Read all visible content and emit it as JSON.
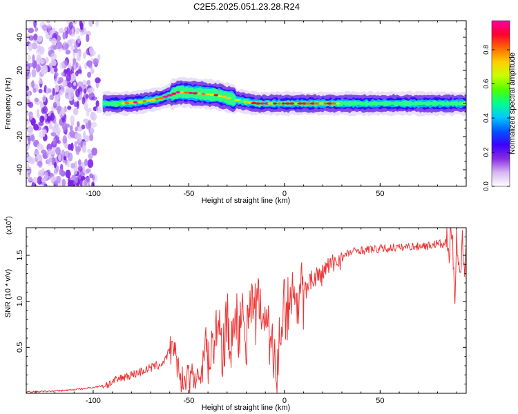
{
  "figure": {
    "title": "C2E5.2025.051.23.28.R24"
  },
  "chart_data": [
    {
      "type": "heatmap",
      "name": "spectrogram",
      "xlabel": "Height of straight line (km)",
      "ylabel": "Frequency (Hz)",
      "xlim": [
        -135,
        95
      ],
      "ylim": [
        -50,
        50
      ],
      "xticks": [
        -100,
        -50,
        0,
        50
      ],
      "xtick_labels": [
        "-100",
        "-50",
        "0",
        "50"
      ],
      "yticks": [
        -40,
        -20,
        0,
        20,
        40
      ],
      "ytick_labels": [
        "-40",
        "-20",
        "0",
        "20",
        "40"
      ],
      "ridge": {
        "description": "dominant frequency ridge (Hz) vs height (km)",
        "x": [
          -95,
          -85,
          -75,
          -65,
          -55,
          -45,
          -35,
          -25,
          -15,
          -5,
          5,
          15,
          25,
          35,
          50,
          70,
          85,
          95
        ],
        "freq": [
          0,
          0,
          1,
          3,
          7,
          6,
          5,
          2,
          0,
          0,
          0,
          0,
          0,
          0,
          0,
          0,
          0,
          0
        ],
        "peak_amplitude": [
          0.6,
          0.8,
          0.95,
          0.9,
          0.95,
          0.9,
          0.85,
          0.7,
          0.95,
          0.95,
          0.9,
          0.95,
          0.9,
          0.5,
          0.45,
          0.45,
          0.45,
          0.8
        ]
      },
      "noise_region_km": [
        -135,
        -95
      ],
      "colorbar": {
        "label": "Normalized spectral amplitude",
        "range": [
          0,
          0.97
        ],
        "ticks": [
          0.0,
          0.2,
          0.4,
          0.6,
          0.8
        ],
        "tick_labels": [
          "0.0",
          "0.2",
          "0.4",
          "0.6",
          "0.8"
        ],
        "colors": [
          "#ffffff",
          "#d6b8f2",
          "#8a2be2",
          "#3b00ff",
          "#0055ff",
          "#00c8ff",
          "#00ff90",
          "#50ff00",
          "#c8ff00",
          "#ffd000",
          "#ff6a00",
          "#ff0030",
          "#ff00a0"
        ]
      }
    },
    {
      "type": "line",
      "name": "snr",
      "xlabel": "Height of straight line (km)",
      "ylabel": "SNR (10 * v/v)",
      "y_multiplier_label": "(x10",
      "y_multiplier_exp": "4",
      "xlim": [
        -135,
        95
      ],
      "ylim": [
        0,
        18000
      ],
      "xticks": [
        -100,
        -50,
        0,
        50
      ],
      "xtick_labels": [
        "-100",
        "-50",
        "0",
        "50"
      ],
      "yticks": [
        5000,
        10000,
        15000
      ],
      "ytick_labels": [
        "0.5",
        "1.0",
        "1.5"
      ],
      "color": "#ee3333",
      "x": [
        -135,
        -125,
        -115,
        -105,
        -98,
        -92,
        -88,
        -84,
        -80,
        -76,
        -72,
        -68,
        -64,
        -61,
        -59,
        -57.5,
        -56,
        -54,
        -52,
        -49,
        -46,
        -43,
        -41,
        -40,
        -38,
        -36,
        -34,
        -32,
        -30,
        -28,
        -26,
        -24,
        -22,
        -20,
        -18,
        -16,
        -14,
        -12,
        -10,
        -8,
        -6,
        -4,
        -3,
        -1,
        1,
        3,
        5,
        7,
        9,
        11,
        13,
        15,
        17,
        19,
        21,
        23,
        25,
        27,
        29,
        31,
        33,
        36,
        39,
        42,
        45,
        48,
        51,
        54,
        57,
        60,
        63,
        66,
        69,
        72,
        75,
        78,
        81,
        83,
        85,
        86,
        87,
        88,
        89,
        90,
        91,
        92,
        93,
        94,
        95
      ],
      "y": [
        150,
        200,
        300,
        500,
        700,
        1000,
        1400,
        1800,
        2000,
        2300,
        2600,
        2900,
        3200,
        4200,
        5200,
        5800,
        3500,
        1200,
        2000,
        2300,
        1800,
        2600,
        6500,
        3500,
        7200,
        6000,
        7600,
        4000,
        8500,
        5200,
        10500,
        6000,
        10000,
        7500,
        12000,
        8000,
        11000,
        9000,
        9300,
        8000,
        6000,
        1700,
        5500,
        10000,
        11000,
        9500,
        11500,
        10500,
        12000,
        11000,
        12800,
        12000,
        13000,
        12500,
        13500,
        13800,
        14000,
        14300,
        14600,
        14800,
        15200,
        15400,
        15600,
        15500,
        15700,
        15600,
        15800,
        15700,
        15900,
        15800,
        15900,
        16000,
        15900,
        16100,
        16000,
        16200,
        16300,
        16000,
        16800,
        15000,
        18000,
        15500,
        10300,
        17500,
        14000,
        12500,
        16500,
        13500,
        15800
      ]
    }
  ]
}
